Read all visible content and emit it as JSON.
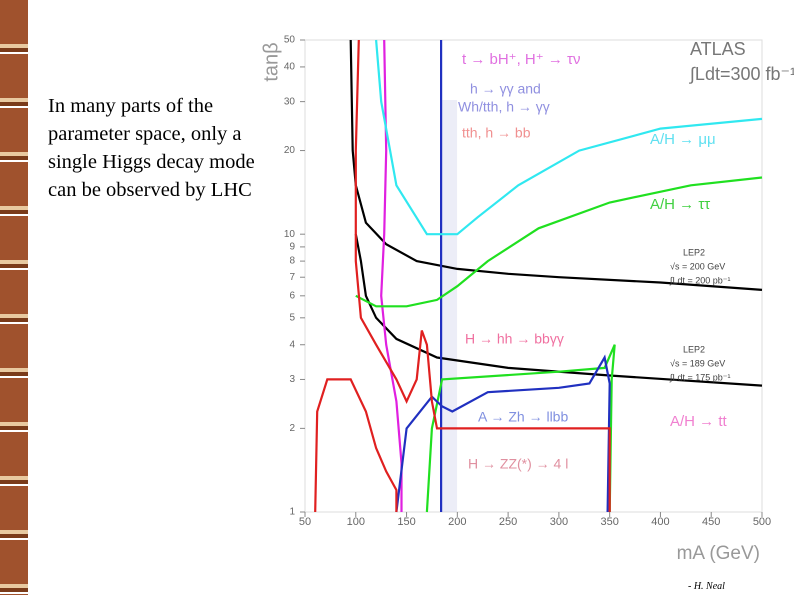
{
  "slide_text": "In many parts of the parameter space, only a single Higgs decay mode can be observed by LHC",
  "footer": "- H. Neal",
  "chart_data": {
    "type": "line",
    "x_label": "mA (GeV)",
    "y_label": "tanβ",
    "ylog": true,
    "xlim": [
      50,
      500
    ],
    "ylim": [
      1,
      50
    ],
    "xticks": [
      50,
      100,
      150,
      200,
      250,
      300,
      350,
      400,
      450,
      500
    ],
    "yticks": [
      1,
      2,
      3,
      4,
      5,
      6,
      7,
      8,
      9,
      10,
      20,
      30,
      40,
      50
    ],
    "annotations": [
      "ATLAS",
      "∫Ldt=300 fb⁻¹",
      "t → bH⁺, H⁺ → τν",
      "h → γγ and",
      "Wh/tth, h → γγ",
      "tth, h → bb",
      "A/H → μμ",
      "A/H → ττ",
      "LEP2",
      "√s = 200 GeV",
      "∫Ldt = 200 pb⁻¹",
      "H → hh → bbγγ",
      "LEP2",
      "√s = 189 GeV",
      "∫Ldt = 175 pb⁻¹",
      "A → Zh → llbb",
      "A/H → tt",
      "H → ZZ(*) → 4 l"
    ],
    "series": [
      {
        "color": "#000000",
        "x": [
          95,
          97,
          100,
          110,
          130,
          160,
          200,
          250,
          300,
          400,
          500
        ],
        "values": [
          50,
          20,
          15,
          11,
          9.2,
          8,
          7.5,
          7.2,
          7,
          6.7,
          6.3
        ]
      },
      {
        "color": "#000000",
        "x": [
          100,
          105,
          110,
          120,
          140,
          180,
          250,
          350,
          500
        ],
        "values": [
          10,
          8,
          6,
          5,
          4.2,
          3.6,
          3.3,
          3.1,
          2.85
        ]
      },
      {
        "color": "#e020e0",
        "x": [
          128,
          130,
          128,
          125,
          130,
          140,
          145,
          145
        ],
        "values": [
          50,
          20,
          10,
          6,
          4,
          2.5,
          1.5,
          1
        ]
      },
      {
        "color": "#2030c0",
        "x": [
          184,
          184
        ],
        "values": [
          50,
          1
        ]
      },
      {
        "color": "#30e8f0",
        "x": [
          120,
          125,
          140,
          170,
          200,
          220,
          260,
          320,
          400,
          500
        ],
        "values": [
          50,
          30,
          15,
          10,
          10,
          11.5,
          15,
          20,
          24,
          26
        ]
      },
      {
        "color": "#20e020",
        "x": [
          100,
          120,
          150,
          180,
          200,
          230,
          280,
          350,
          430,
          500
        ],
        "values": [
          6,
          5.5,
          5.5,
          5.8,
          6.5,
          8,
          10.5,
          13,
          15,
          16
        ]
      },
      {
        "color": "#20e020",
        "x": [
          170,
          175,
          185,
          300,
          345,
          355,
          352,
          350
        ],
        "values": [
          1,
          2,
          3,
          3.2,
          3.3,
          4,
          3,
          1
        ]
      },
      {
        "color": "#2030c0",
        "x": [
          140,
          150,
          175,
          185,
          195,
          230,
          300,
          330,
          345,
          350,
          348
        ],
        "values": [
          1,
          2,
          2.6,
          2.4,
          2.3,
          2.7,
          2.8,
          2.9,
          3.6,
          2.9,
          1
        ]
      },
      {
        "color": "#e02020",
        "x": [
          60,
          62,
          72,
          95,
          110,
          120,
          130,
          140,
          140
        ],
        "values": [
          1,
          2.3,
          3,
          3,
          2.3,
          1.7,
          1.4,
          1.2,
          1
        ]
      },
      {
        "color": "#e02020",
        "x": [
          103,
          100,
          100,
          105,
          120,
          140,
          150,
          160,
          165,
          170,
          175,
          180,
          200,
          350,
          350
        ],
        "values": [
          50,
          20,
          8,
          5,
          4,
          3,
          2.5,
          3,
          4.5,
          4,
          2.5,
          2,
          2,
          2,
          1
        ]
      }
    ]
  }
}
